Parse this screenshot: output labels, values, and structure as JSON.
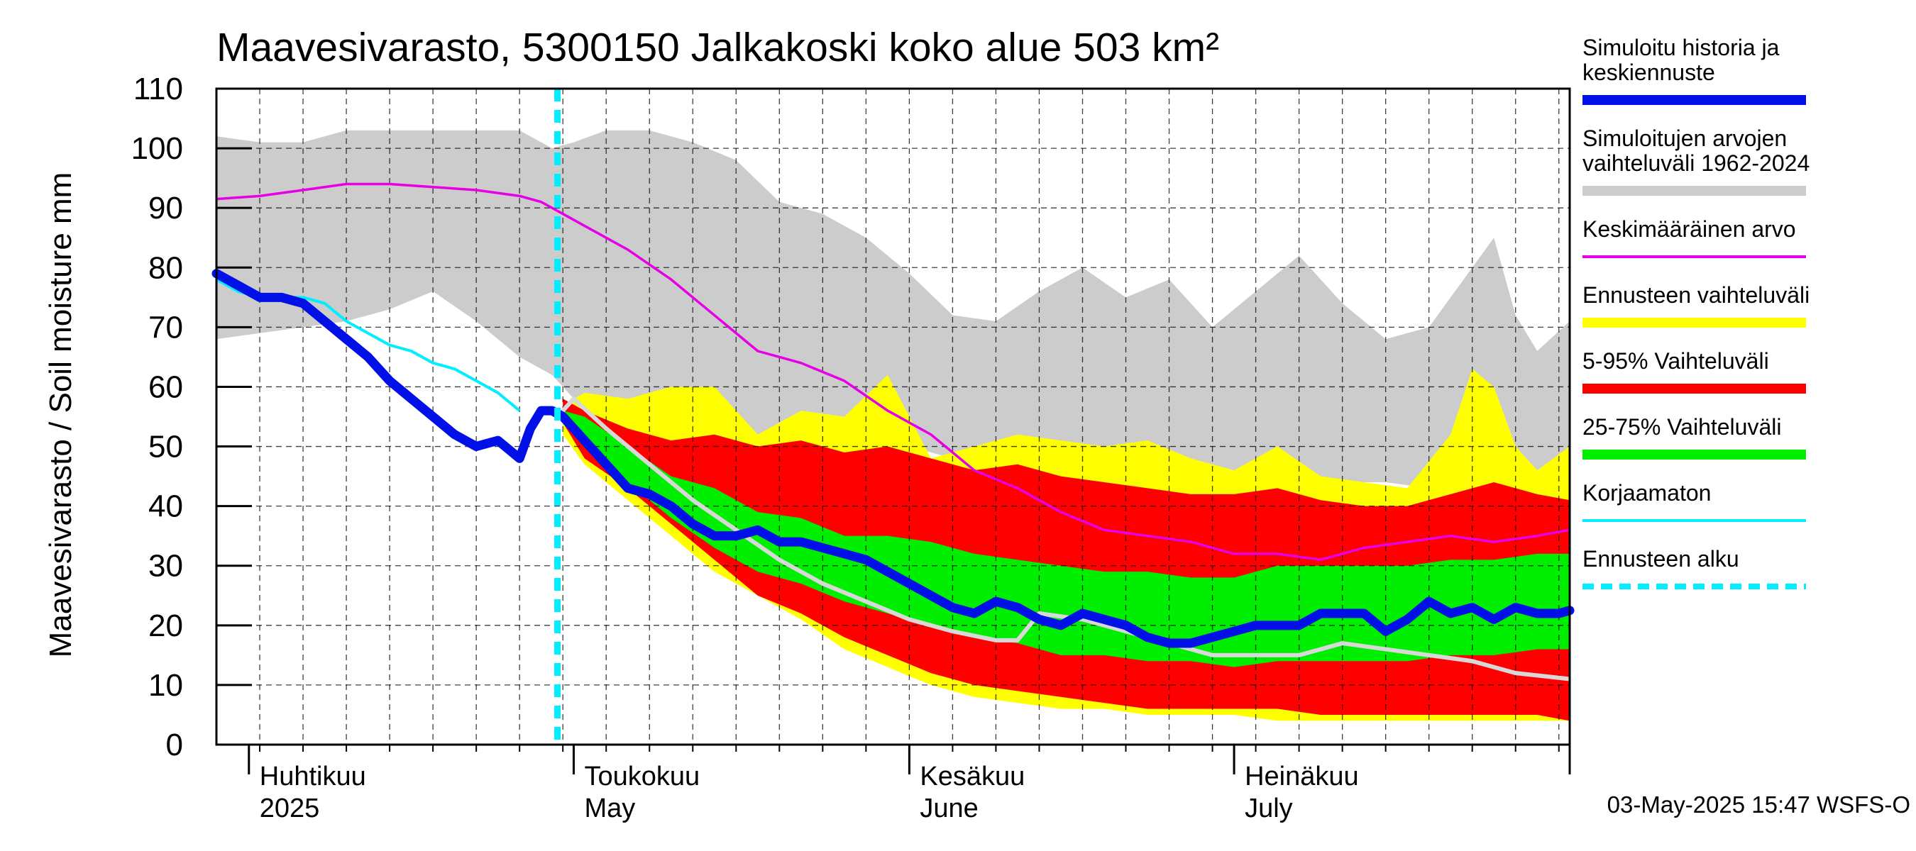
{
  "chart_data": {
    "type": "area",
    "title": "Maavesivarasto, 5300150 Jalkakoski koko alue 503 km²",
    "ylabel": "Maavesivarasto / Soil moisture   mm",
    "xlabel": "",
    "ylim": [
      0,
      110
    ],
    "yticks": [
      0,
      10,
      20,
      30,
      40,
      50,
      60,
      70,
      80,
      90,
      100,
      110
    ],
    "x_unit": "day of year 2025",
    "xlim": [
      88,
      213
    ],
    "grid": true,
    "months": [
      {
        "start_doy": 91,
        "label_fi": "Huhtikuu",
        "label_en": "2025"
      },
      {
        "start_doy": 121,
        "label_fi": "Toukokuu",
        "label_en": "May"
      },
      {
        "start_doy": 152,
        "label_fi": "Kesäkuu",
        "label_en": "June"
      },
      {
        "start_doy": 182,
        "label_fi": "Heinäkuu",
        "label_en": "July"
      }
    ],
    "forecast_start_doy": 119.5,
    "timestamp": "03-May-2025 15:47 WSFS-O",
    "legend": [
      {
        "key": "history",
        "label_lines": [
          "Simuloitu historia ja",
          "keskiennuste"
        ],
        "color": "#0010e6",
        "style": "thick"
      },
      {
        "key": "range",
        "label_lines": [
          "Simuloitujen arvojen",
          "vaihteluväli 1962-2024"
        ],
        "color": "#cccccc",
        "style": "thick"
      },
      {
        "key": "mean",
        "label_lines": [
          "Keskimääräinen arvo"
        ],
        "color": "#e600e6",
        "style": "thin"
      },
      {
        "key": "fc_range",
        "label_lines": [
          "Ennusteen vaihteluväli"
        ],
        "color": "#ffff00",
        "style": "thick"
      },
      {
        "key": "p5_95",
        "label_lines": [
          "5-95% Vaihteluväli"
        ],
        "color": "#ff0000",
        "style": "thick"
      },
      {
        "key": "p25_75",
        "label_lines": [
          "25-75% Vaihteluväli"
        ],
        "color": "#00ee00",
        "style": "thick"
      },
      {
        "key": "uncorrected",
        "label_lines": [
          "Korjaamaton"
        ],
        "color": "#00eeff",
        "style": "thin"
      },
      {
        "key": "fc_start",
        "label_lines": [
          "Ennusteen alku"
        ],
        "color": "#00eeff",
        "style": "dashed"
      }
    ],
    "series": {
      "hist_range": {
        "x": [
          88,
          92,
          96,
          100,
          104,
          108,
          112,
          116,
          119,
          121,
          124,
          128,
          132,
          136,
          140,
          144,
          148,
          152,
          156,
          160,
          164,
          168,
          172,
          176,
          180,
          184,
          188,
          192,
          196,
          200,
          204,
          206,
          208,
          210,
          213
        ],
        "upper": [
          102,
          101,
          101,
          103,
          103,
          103,
          103,
          103,
          100,
          101,
          103,
          103,
          101,
          98,
          91,
          89,
          85,
          79,
          72,
          71,
          76,
          80,
          75,
          78,
          70,
          76,
          82,
          74,
          68,
          70,
          80,
          85,
          72,
          66,
          71
        ],
        "lower": [
          68,
          69,
          70,
          71,
          73,
          76,
          71,
          65,
          62,
          58,
          56,
          54,
          53,
          52,
          52,
          51,
          51,
          50,
          48,
          47,
          46,
          46,
          45,
          46,
          45,
          45,
          45,
          44,
          44,
          43,
          43,
          43,
          43,
          43,
          43
        ]
      },
      "forecast_range": {
        "x": [
          120,
          122,
          126,
          130,
          134,
          138,
          142,
          146,
          150,
          154,
          158,
          162,
          166,
          170,
          174,
          178,
          182,
          186,
          190,
          194,
          198,
          202,
          204,
          206,
          208,
          210,
          213
        ],
        "upper": [
          57,
          59,
          58,
          60,
          60,
          52,
          56,
          55,
          62,
          48,
          50,
          52,
          51,
          50,
          51,
          48,
          46,
          50,
          45,
          44,
          43,
          52,
          63,
          60,
          50,
          46,
          50
        ],
        "lower": [
          52,
          47,
          41,
          35,
          29,
          25,
          21,
          16,
          13,
          10,
          8,
          7,
          6,
          6,
          5,
          5,
          5,
          4,
          4,
          4,
          4,
          4,
          4,
          4,
          4,
          4,
          4
        ]
      },
      "p5_95": {
        "x": [
          120,
          122,
          126,
          130,
          134,
          138,
          142,
          146,
          150,
          154,
          158,
          162,
          166,
          170,
          174,
          178,
          182,
          186,
          190,
          194,
          198,
          202,
          206,
          210,
          213
        ],
        "upper": [
          58,
          56,
          53,
          51,
          52,
          50,
          51,
          49,
          50,
          48,
          46,
          47,
          45,
          44,
          43,
          42,
          42,
          43,
          41,
          40,
          40,
          42,
          44,
          42,
          41
        ],
        "lower": [
          54,
          48,
          43,
          37,
          31,
          25,
          22,
          18,
          15,
          12,
          10,
          9,
          8,
          7,
          6,
          6,
          6,
          6,
          5,
          5,
          5,
          5,
          5,
          5,
          4
        ]
      },
      "p25_75": {
        "x": [
          120,
          122,
          126,
          130,
          134,
          138,
          142,
          146,
          150,
          154,
          158,
          162,
          166,
          170,
          174,
          178,
          182,
          186,
          190,
          194,
          198,
          202,
          206,
          210,
          213
        ],
        "upper": [
          56,
          55,
          50,
          45,
          43,
          39,
          38,
          35,
          35,
          34,
          32,
          31,
          30,
          29,
          29,
          28,
          28,
          30,
          30,
          30,
          30,
          31,
          31,
          32,
          32
        ],
        "lower": [
          55,
          51,
          44,
          38,
          33,
          29,
          27,
          24,
          22,
          20,
          18,
          17,
          15,
          15,
          14,
          14,
          13,
          14,
          14,
          14,
          14,
          15,
          15,
          16,
          16
        ]
      },
      "mean": {
        "x": [
          88,
          92,
          96,
          100,
          104,
          108,
          112,
          116,
          118,
          120,
          122,
          126,
          130,
          134,
          138,
          142,
          146,
          150,
          154,
          158,
          162,
          166,
          170,
          174,
          178,
          182,
          186,
          190,
          194,
          198,
          202,
          206,
          210,
          213
        ],
        "y": [
          91.5,
          92,
          93,
          94,
          94,
          93.5,
          93,
          92,
          91,
          89,
          87,
          83,
          78,
          72,
          66,
          64,
          61,
          56,
          52,
          46,
          43,
          39,
          36,
          35,
          34,
          32,
          32,
          31,
          33,
          34,
          35,
          34,
          35,
          36
        ]
      },
      "median_forecast": {
        "x": [
          119.5,
          121,
          124,
          128,
          132,
          136,
          140,
          144,
          148,
          152,
          156,
          160,
          162,
          164,
          168,
          172,
          176,
          180,
          184,
          188,
          192,
          196,
          200,
          204,
          208,
          213
        ],
        "y": [
          55,
          58,
          53,
          47,
          41,
          36,
          31,
          27,
          24,
          21,
          19,
          17.5,
          17.5,
          22,
          21,
          19,
          17,
          15,
          15,
          15,
          17,
          16,
          15,
          14,
          12,
          11
        ]
      },
      "simulated": {
        "x": [
          88,
          90,
          92,
          94,
          96,
          98,
          100,
          102,
          104,
          106,
          108,
          110,
          112,
          114,
          116,
          117,
          118,
          119,
          120,
          122,
          124,
          126,
          128,
          130,
          132,
          134,
          136,
          138,
          140,
          142,
          144,
          146,
          148,
          150,
          152,
          154,
          156,
          158,
          160,
          162,
          164,
          166,
          168,
          170,
          172,
          174,
          176,
          178,
          180,
          182,
          184,
          186,
          188,
          190,
          192,
          194,
          196,
          198,
          200,
          202,
          204,
          206,
          208,
          210,
          212,
          213
        ],
        "y": [
          79,
          77,
          75,
          75,
          74,
          71,
          68,
          65,
          61,
          58,
          55,
          52,
          50,
          51,
          48,
          53,
          56,
          56,
          55,
          51,
          47,
          43,
          42,
          40,
          37,
          35,
          35,
          36,
          34,
          34,
          33,
          32,
          31,
          29,
          27,
          25,
          23,
          22,
          24,
          23,
          21,
          20,
          22,
          21,
          20,
          18,
          17,
          17,
          18,
          19,
          20,
          20,
          20,
          22,
          22,
          22,
          19,
          21,
          24,
          22,
          23,
          21,
          23,
          22,
          22,
          22.5
        ]
      },
      "uncorrected": {
        "x": [
          88,
          90,
          92,
          94,
          96,
          98,
          100,
          102,
          104,
          106,
          108,
          110,
          112,
          114,
          116
        ],
        "y": [
          78,
          76,
          75,
          75,
          75,
          74,
          71,
          69,
          67,
          66,
          64,
          63,
          61,
          59,
          56
        ]
      }
    }
  }
}
